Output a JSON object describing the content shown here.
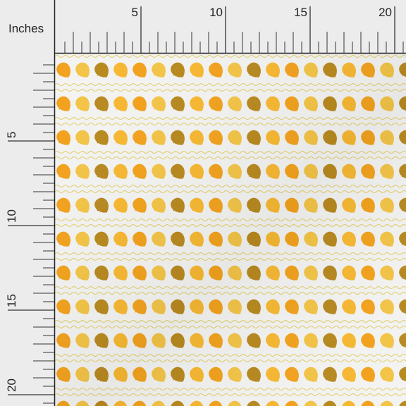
{
  "ruler": {
    "unit": "Inches",
    "top_labels": [
      5,
      10,
      15,
      20
    ],
    "left_labels": [
      5,
      10,
      15,
      20
    ]
  }
}
